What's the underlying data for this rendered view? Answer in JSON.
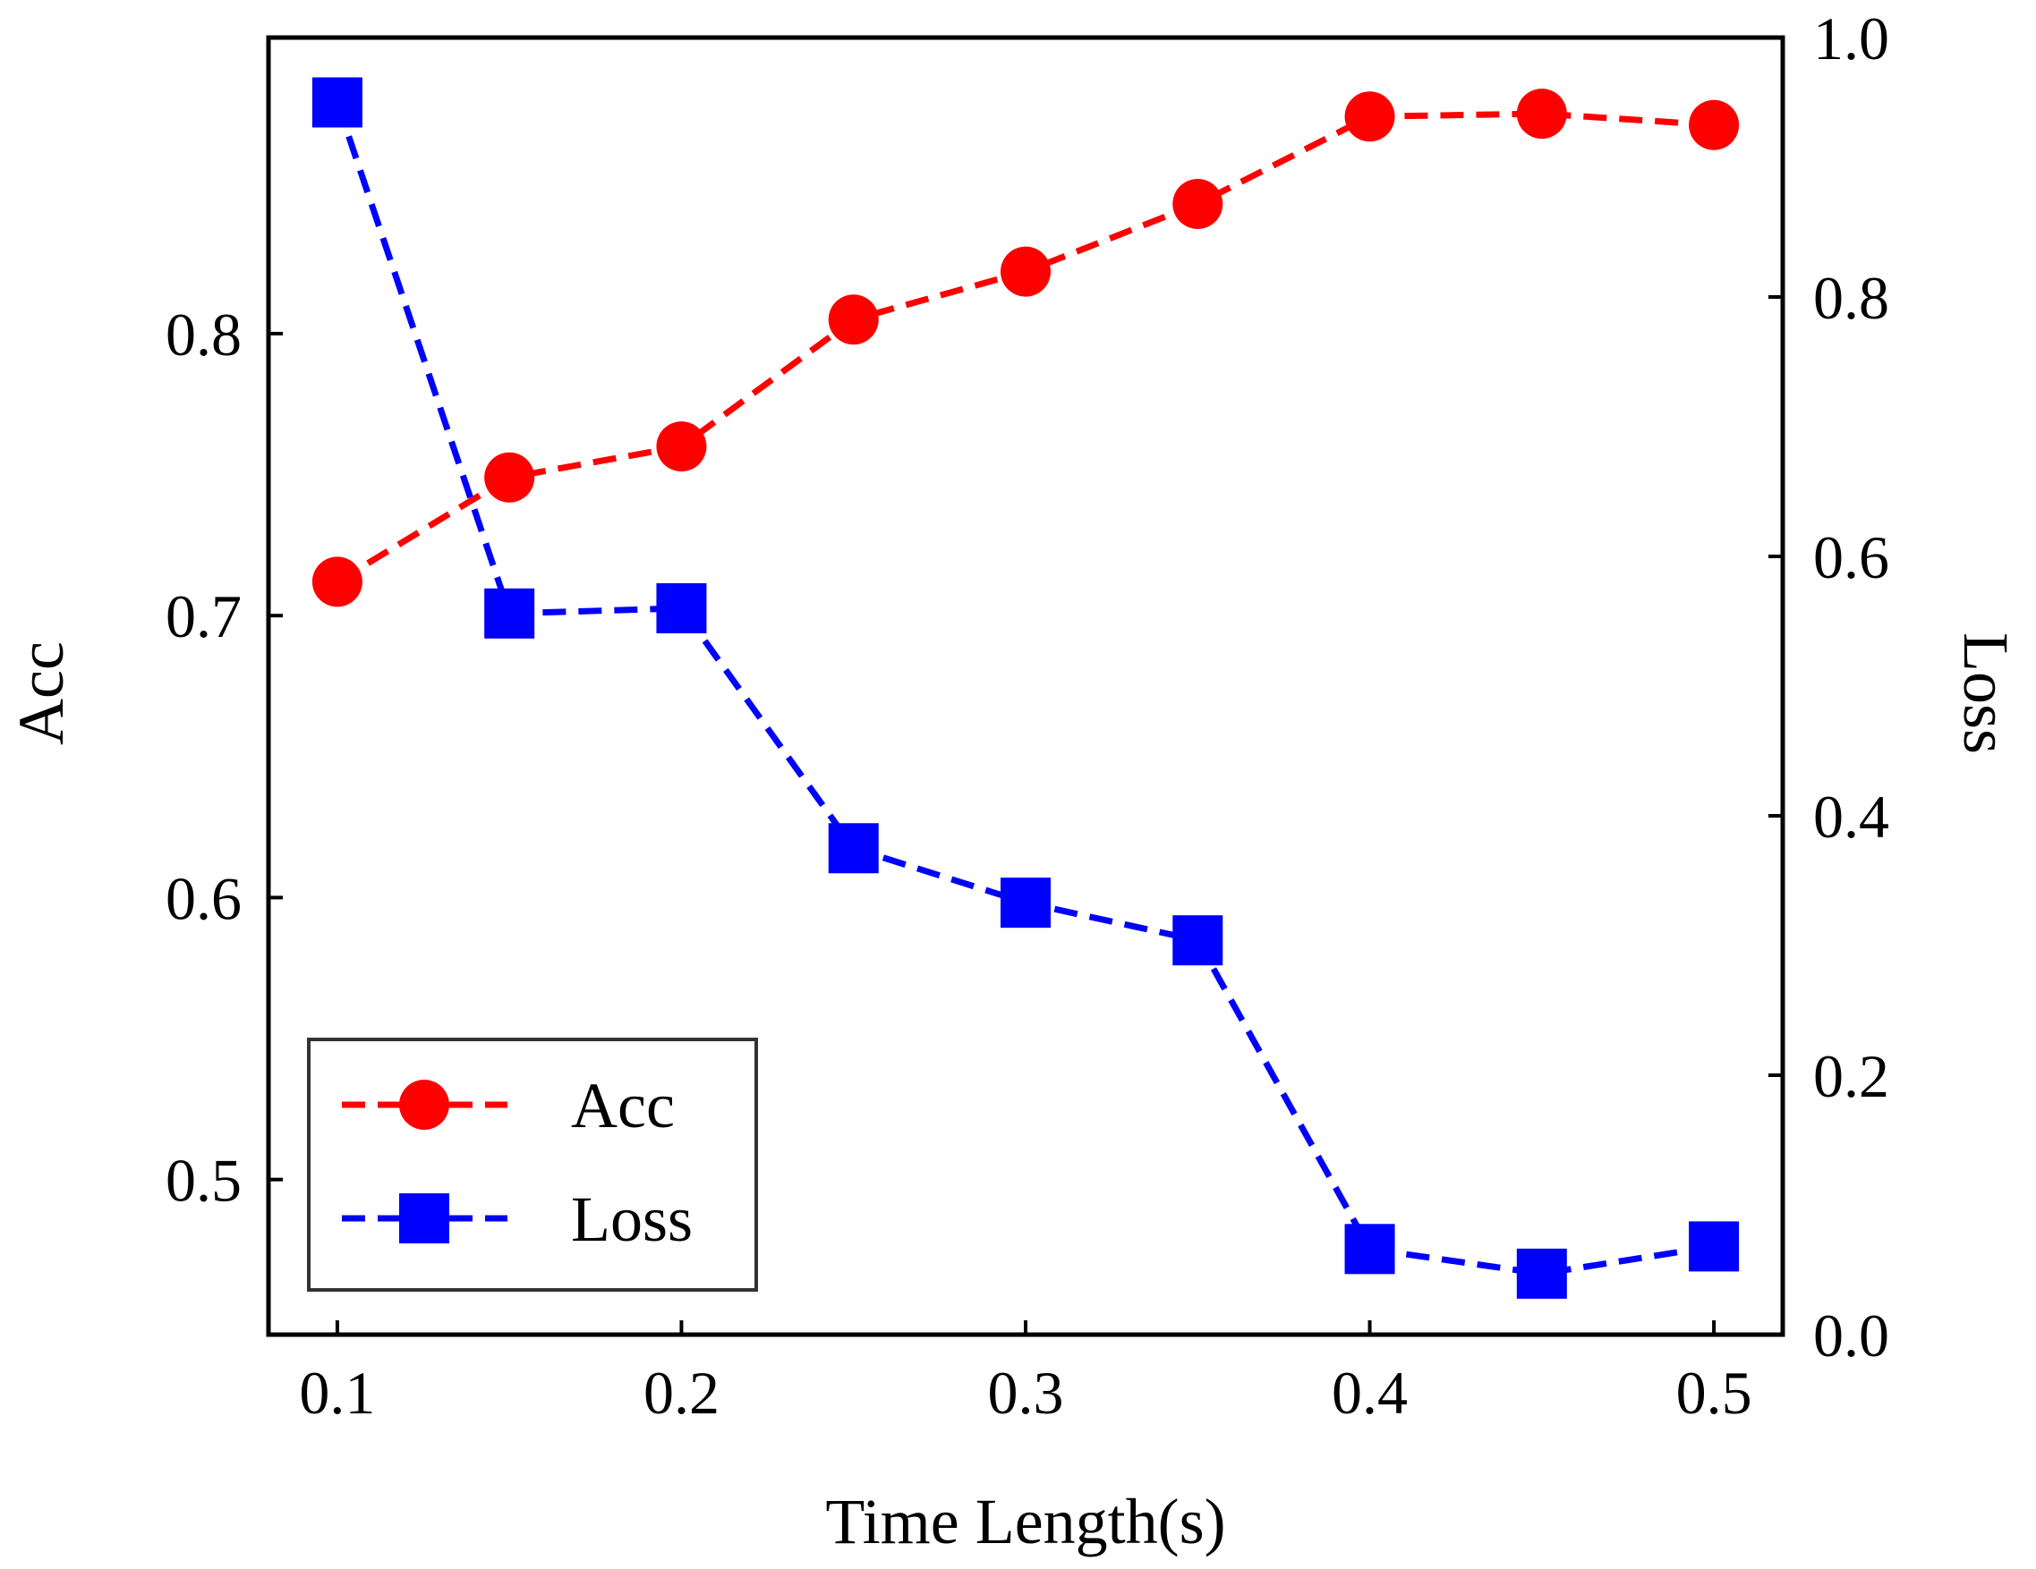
{
  "chart_data": {
    "type": "line",
    "x": [
      0.1,
      0.15,
      0.2,
      0.25,
      0.3,
      0.35,
      0.4,
      0.45,
      0.5
    ],
    "xlabel": "Time Length(s)",
    "xlim": [
      0.08,
      0.52
    ],
    "xticks": [
      0.1,
      0.2,
      0.3,
      0.4,
      0.5
    ],
    "xtick_labels": [
      "0.1",
      "0.2",
      "0.3",
      "0.4",
      "0.5"
    ],
    "left_axis": {
      "label": "Acc",
      "ylim": [
        0.445,
        0.905
      ],
      "ticks": [
        0.5,
        0.6,
        0.7,
        0.8
      ],
      "tick_labels": [
        "0.5",
        "0.6",
        "0.7",
        "0.8"
      ]
    },
    "right_axis": {
      "label": "Loss",
      "ylim": [
        0.0,
        1.0
      ],
      "ticks": [
        0.0,
        0.2,
        0.4,
        0.6,
        0.8,
        1.0
      ],
      "tick_labels": [
        "0.0",
        "0.2",
        "0.4",
        "0.6",
        "0.8",
        "1.0"
      ]
    },
    "series": [
      {
        "name": "Acc",
        "axis": "left",
        "color": "#ff0000",
        "marker": "circle",
        "line_style": "dashed",
        "values": [
          0.712,
          0.749,
          0.76,
          0.805,
          0.822,
          0.846,
          0.877,
          0.878,
          0.874
        ]
      },
      {
        "name": "Loss",
        "axis": "right",
        "color": "#0000ff",
        "marker": "square",
        "line_style": "dashed",
        "values": [
          0.95,
          0.556,
          0.56,
          0.375,
          0.333,
          0.304,
          0.066,
          0.047,
          0.068
        ]
      }
    ],
    "legend": {
      "position": "lower-left",
      "entries": [
        "Acc",
        "Loss"
      ]
    },
    "grid": false
  }
}
